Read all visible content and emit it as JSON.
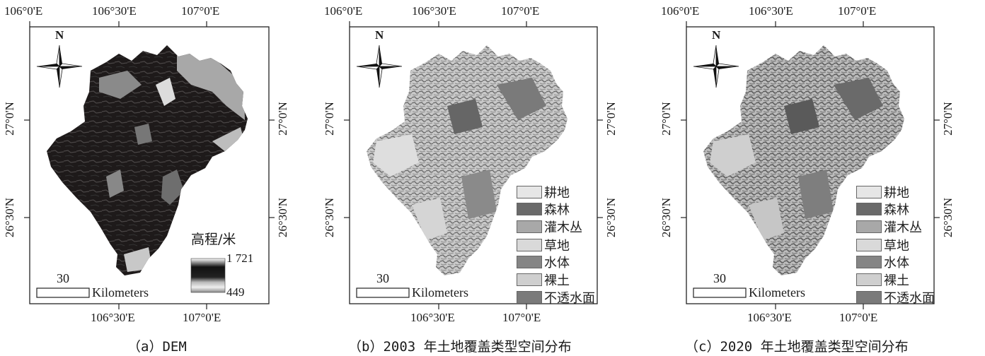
{
  "axes": {
    "top_ticks": [
      "106°0'E",
      "106°30'E",
      "107°0'E"
    ],
    "bottom_ticks": [
      "106°30'E",
      "107°0'E"
    ],
    "left_ticks": [
      "27°0'N",
      "26°30'N"
    ],
    "right_ticks": [
      "27°0'N",
      "26°30'N"
    ]
  },
  "north_label": "N",
  "scale": {
    "value": "30",
    "unit": "Kilometers"
  },
  "dem_legend": {
    "title": "高程/米",
    "max": "1 721",
    "min": "449"
  },
  "landcover_legend": [
    {
      "label": "耕地",
      "color": "#e6e6e6"
    },
    {
      "label": "森林",
      "color": "#6a6a6a"
    },
    {
      "label": "灌木丛",
      "color": "#a8a8a8"
    },
    {
      "label": "草地",
      "color": "#d9d9d9"
    },
    {
      "label": "水体",
      "color": "#858585"
    },
    {
      "label": "裸土",
      "color": "#cfcfcf"
    },
    {
      "label": "不透水面",
      "color": "#7a7a7a"
    }
  ],
  "captions": {
    "a": "（a）DEM",
    "b": "（b）2003 年土地覆盖类型空间分布",
    "c": "（c）2020 年土地覆盖类型空间分布"
  }
}
